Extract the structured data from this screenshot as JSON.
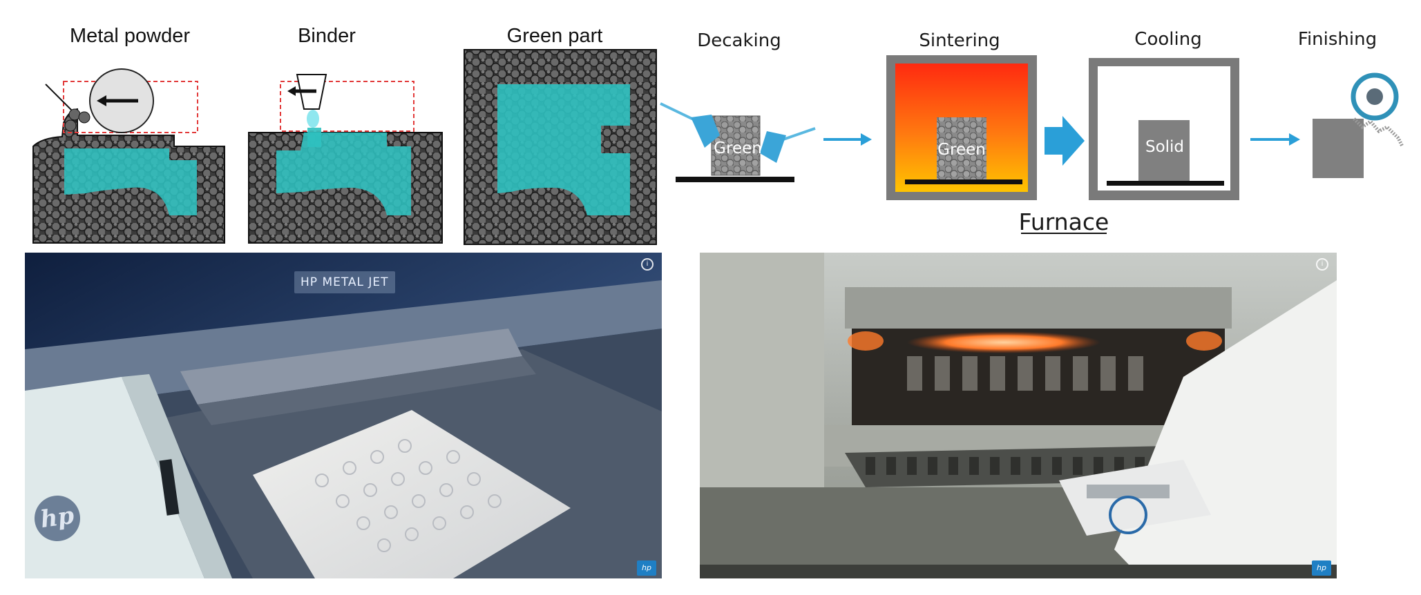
{
  "stages": {
    "metal_powder": "Metal powder",
    "binder": "Binder",
    "green_part": "Green part",
    "decaking": "Decaking",
    "sintering": "Sintering",
    "cooling": "Cooling",
    "finishing": "Finishing"
  },
  "part_labels": {
    "decaking_part": "Green",
    "sintering_part": "Green",
    "cooling_part": "Solid"
  },
  "furnace_label": "Furnace",
  "photo_left": {
    "banner": "HP METAL JET",
    "info": "i",
    "brand_logo": "hp",
    "corner_badge": "hp"
  },
  "photo_right": {
    "info": "i",
    "corner_badge": "hp"
  },
  "colors": {
    "binder_fill": "#2fc1c0",
    "powder_fill": "#555555",
    "arrow_blue": "#2a9fd8",
    "furnace_frame": "#7a7a7a",
    "part_gray": "#808080",
    "red_dashed": "#e23a3a"
  },
  "icons": [
    "roller-icon",
    "print-head-icon",
    "brush-icon",
    "grinder-wheel-icon",
    "arrow-icon"
  ]
}
